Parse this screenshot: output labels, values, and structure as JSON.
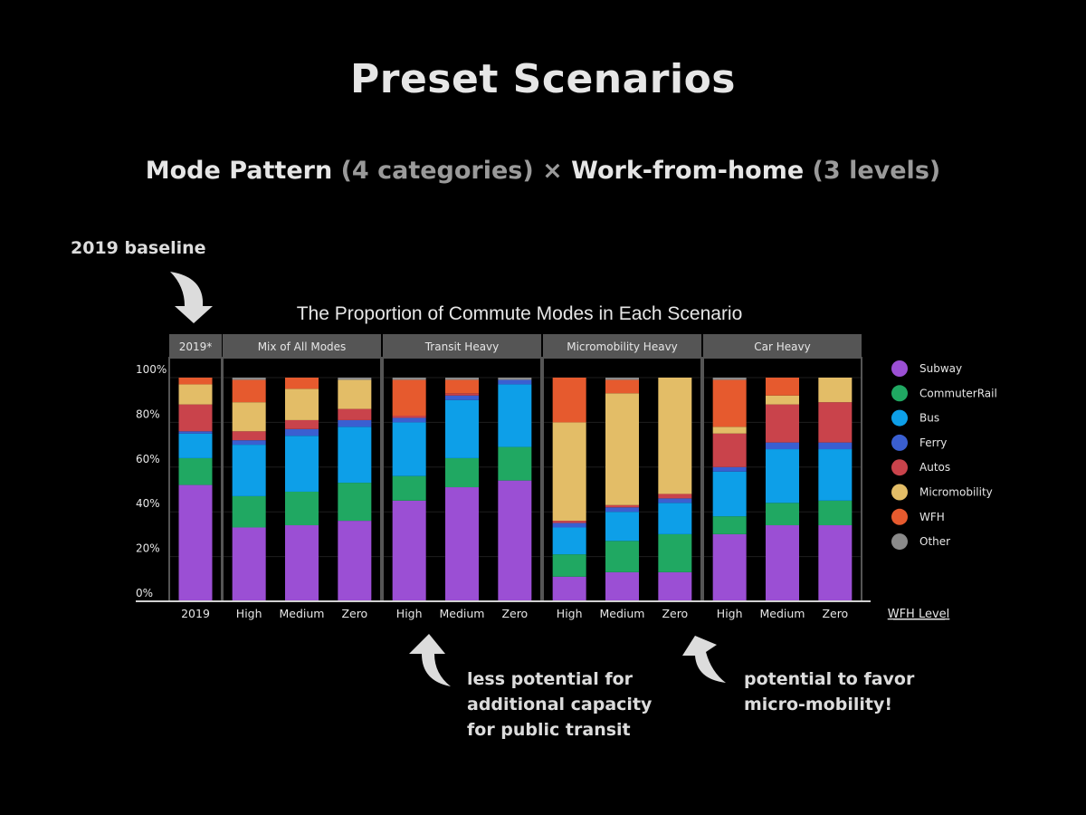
{
  "slide": {
    "title": "Preset Scenarios",
    "subtitle_a": "Mode Pattern",
    "subtitle_b": " (4 categories) × ",
    "subtitle_c": "Work-from-home",
    "subtitle_d": " (3 levels)",
    "baseline_label": "2019 baseline",
    "note_left": [
      "less potential for",
      "additional capacity",
      "for public transit"
    ],
    "note_right": [
      "potential to favor",
      "micro-mobility!"
    ]
  },
  "chart_data": {
    "type": "bar",
    "stacked": true,
    "title": "The Proportion of Commute Modes in Each Scenario",
    "xlabel": "WFH Level",
    "ylim": [
      0,
      100
    ],
    "yticks": [
      "0%",
      "20%",
      "40%",
      "60%",
      "80%",
      "100%"
    ],
    "grid": true,
    "legend_position": "right",
    "panels": [
      {
        "name": "2019*",
        "categories": [
          "2019"
        ]
      },
      {
        "name": "Mix of All Modes",
        "categories": [
          "High",
          "Medium",
          "Zero"
        ]
      },
      {
        "name": "Transit Heavy",
        "categories": [
          "High",
          "Medium",
          "Zero"
        ]
      },
      {
        "name": "Micromobility Heavy",
        "categories": [
          "High",
          "Medium",
          "Zero"
        ]
      },
      {
        "name": "Car Heavy",
        "categories": [
          "High",
          "Medium",
          "Zero"
        ]
      }
    ],
    "series": [
      {
        "name": "Subway",
        "color": "#9b4fd4",
        "values": [
          52,
          33,
          34,
          36,
          45,
          51,
          54,
          11,
          13,
          13,
          30,
          34,
          34
        ]
      },
      {
        "name": "CommuterRail",
        "color": "#20a862",
        "values": [
          12,
          14,
          15,
          17,
          11,
          13,
          15,
          10,
          14,
          17,
          8,
          10,
          11
        ]
      },
      {
        "name": "Bus",
        "color": "#0d9fe8",
        "values": [
          11,
          23,
          25,
          25,
          24,
          26,
          28,
          12,
          13,
          14,
          20,
          24,
          23
        ]
      },
      {
        "name": "Ferry",
        "color": "#3a5fd1",
        "values": [
          1,
          2,
          3,
          3,
          2,
          2,
          2,
          2,
          2,
          2,
          2,
          3,
          3
        ]
      },
      {
        "name": "Autos",
        "color": "#c9434b",
        "values": [
          12,
          4,
          4,
          5,
          1,
          1,
          0,
          1,
          1,
          2,
          15,
          17,
          18
        ]
      },
      {
        "name": "Micromobility",
        "color": "#e3bd67",
        "values": [
          9,
          13,
          14,
          13,
          0,
          0,
          0,
          44,
          50,
          52,
          3,
          4,
          11
        ]
      },
      {
        "name": "WFH",
        "color": "#e65a2e",
        "values": [
          3,
          10,
          5,
          0,
          16,
          6,
          0,
          20,
          6,
          0,
          21,
          8,
          0
        ]
      },
      {
        "name": "Other",
        "color": "#8a8a8a",
        "values": [
          0,
          1,
          0,
          1,
          1,
          1,
          1,
          0,
          1,
          0,
          1,
          0,
          0
        ]
      }
    ]
  }
}
